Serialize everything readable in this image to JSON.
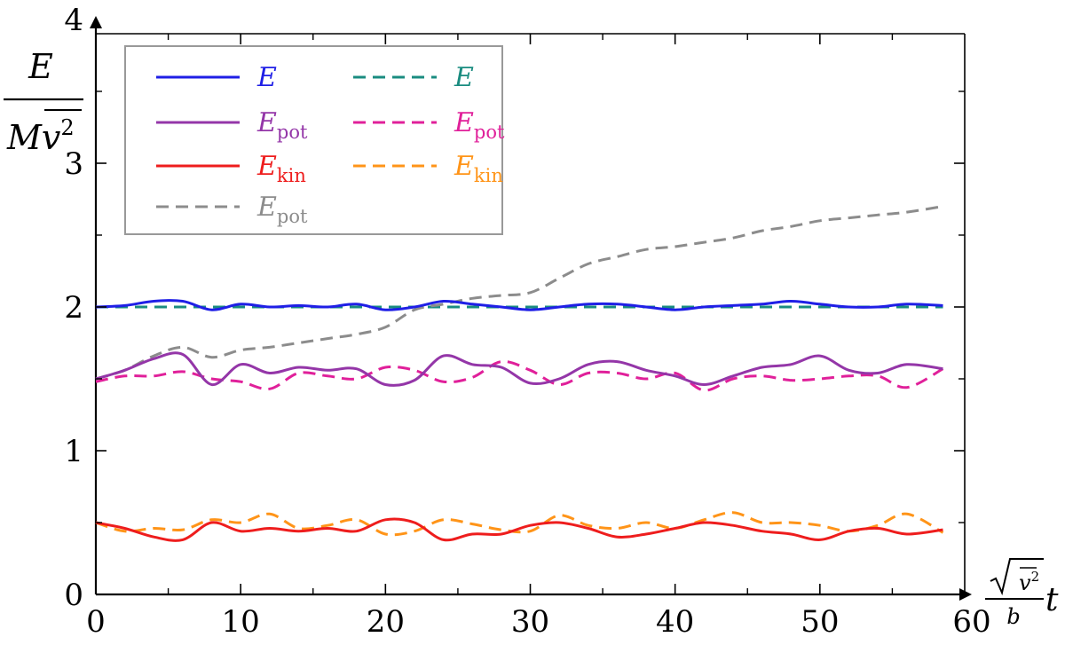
{
  "chart_data": {
    "type": "line",
    "title": "",
    "ylabel": {
      "num": "E",
      "den_main": "Mv",
      "den_sup": "2"
    },
    "xlabel": {
      "sqrt_sup": "2",
      "sqrt_var": "v",
      "den": "b",
      "var": "t"
    },
    "xlim": [
      0,
      60
    ],
    "ylim": [
      0,
      4
    ],
    "x_ticks": [
      "0",
      "10",
      "20",
      "30",
      "40",
      "50",
      "60"
    ],
    "y_ticks": [
      "0",
      "1",
      "2",
      "3",
      "4"
    ],
    "grid": false,
    "legend": {
      "placement": "top-left"
    },
    "series": [
      {
        "name": "E",
        "sub": "",
        "color": "#1f1fe6",
        "dash": "solid",
        "x": [
          0,
          2,
          4,
          6,
          8,
          10,
          12,
          14,
          16,
          18,
          20,
          22,
          24,
          26,
          28,
          30,
          32,
          34,
          36,
          38,
          40,
          42,
          44,
          46,
          48,
          50,
          52,
          54,
          56,
          58.5
        ],
        "y": [
          2.0,
          2.01,
          2.04,
          2.04,
          1.98,
          2.02,
          2.0,
          2.01,
          2.0,
          2.02,
          1.98,
          2.0,
          2.04,
          2.02,
          2.0,
          1.98,
          2.0,
          2.02,
          2.02,
          2.0,
          1.98,
          2.0,
          2.01,
          2.02,
          2.04,
          2.02,
          2.0,
          2.0,
          2.02,
          2.01
        ]
      },
      {
        "name": "E",
        "sub": "",
        "color": "#1a8c80",
        "dash": "dashed",
        "x": [
          0,
          58.5
        ],
        "y": [
          2.0,
          2.0
        ]
      },
      {
        "name": "E",
        "sub": "pot",
        "color": "#9436a8",
        "dash": "solid",
        "x": [
          0,
          2,
          4,
          6,
          8,
          10,
          12,
          14,
          16,
          18,
          20,
          22,
          24,
          26,
          28,
          30,
          32,
          34,
          36,
          38,
          40,
          42,
          44,
          46,
          48,
          50,
          52,
          54,
          56,
          58.5
        ],
        "y": [
          1.5,
          1.56,
          1.64,
          1.67,
          1.46,
          1.6,
          1.54,
          1.58,
          1.56,
          1.57,
          1.46,
          1.49,
          1.66,
          1.6,
          1.58,
          1.47,
          1.5,
          1.6,
          1.62,
          1.56,
          1.52,
          1.46,
          1.52,
          1.58,
          1.6,
          1.66,
          1.56,
          1.54,
          1.6,
          1.57
        ]
      },
      {
        "name": "E",
        "sub": "pot",
        "color": "#e0209a",
        "dash": "dashed",
        "x": [
          0,
          2,
          4,
          6,
          8,
          10,
          12,
          14,
          16,
          18,
          20,
          22,
          24,
          26,
          28,
          30,
          32,
          34,
          36,
          38,
          40,
          42,
          44,
          46,
          48,
          50,
          52,
          54,
          56,
          58.5
        ],
        "y": [
          1.48,
          1.52,
          1.52,
          1.55,
          1.5,
          1.48,
          1.43,
          1.54,
          1.52,
          1.5,
          1.58,
          1.56,
          1.48,
          1.51,
          1.62,
          1.56,
          1.46,
          1.54,
          1.54,
          1.5,
          1.54,
          1.42,
          1.5,
          1.52,
          1.49,
          1.5,
          1.52,
          1.52,
          1.44,
          1.57
        ]
      },
      {
        "name": "E",
        "sub": "kin",
        "color": "#ee1d1d",
        "dash": "solid",
        "x": [
          0,
          2,
          4,
          6,
          8,
          10,
          12,
          14,
          16,
          18,
          20,
          22,
          24,
          26,
          28,
          30,
          32,
          34,
          36,
          38,
          40,
          42,
          44,
          46,
          48,
          50,
          52,
          54,
          56,
          58.5
        ],
        "y": [
          0.5,
          0.46,
          0.4,
          0.38,
          0.5,
          0.44,
          0.46,
          0.44,
          0.46,
          0.44,
          0.52,
          0.5,
          0.38,
          0.42,
          0.42,
          0.48,
          0.5,
          0.46,
          0.4,
          0.42,
          0.46,
          0.5,
          0.48,
          0.44,
          0.42,
          0.38,
          0.44,
          0.46,
          0.42,
          0.45
        ]
      },
      {
        "name": "E",
        "sub": "kin",
        "color": "#ff9418",
        "dash": "dashed",
        "x": [
          0,
          2,
          4,
          6,
          8,
          10,
          12,
          14,
          16,
          18,
          20,
          22,
          24,
          26,
          28,
          30,
          32,
          34,
          36,
          38,
          40,
          42,
          44,
          46,
          48,
          50,
          52,
          54,
          56,
          58.5
        ],
        "y": [
          0.5,
          0.44,
          0.46,
          0.45,
          0.52,
          0.5,
          0.56,
          0.46,
          0.48,
          0.52,
          0.42,
          0.44,
          0.52,
          0.49,
          0.45,
          0.44,
          0.55,
          0.48,
          0.46,
          0.5,
          0.46,
          0.52,
          0.57,
          0.5,
          0.5,
          0.48,
          0.44,
          0.48,
          0.56,
          0.43
        ]
      },
      {
        "name": "E",
        "sub": "pot",
        "color": "#8c8c8c",
        "dash": "dashed",
        "x": [
          0,
          2,
          4,
          6,
          8,
          10,
          12,
          14,
          16,
          18,
          20,
          22,
          24,
          26,
          28,
          30,
          32,
          34,
          36,
          38,
          40,
          42,
          44,
          46,
          48,
          50,
          52,
          54,
          56,
          58.5
        ],
        "y": [
          1.5,
          1.56,
          1.66,
          1.72,
          1.65,
          1.7,
          1.72,
          1.75,
          1.78,
          1.81,
          1.86,
          1.98,
          2.02,
          2.06,
          2.08,
          2.1,
          2.2,
          2.3,
          2.35,
          2.4,
          2.42,
          2.45,
          2.48,
          2.53,
          2.56,
          2.6,
          2.62,
          2.64,
          2.66,
          2.7
        ]
      }
    ]
  }
}
